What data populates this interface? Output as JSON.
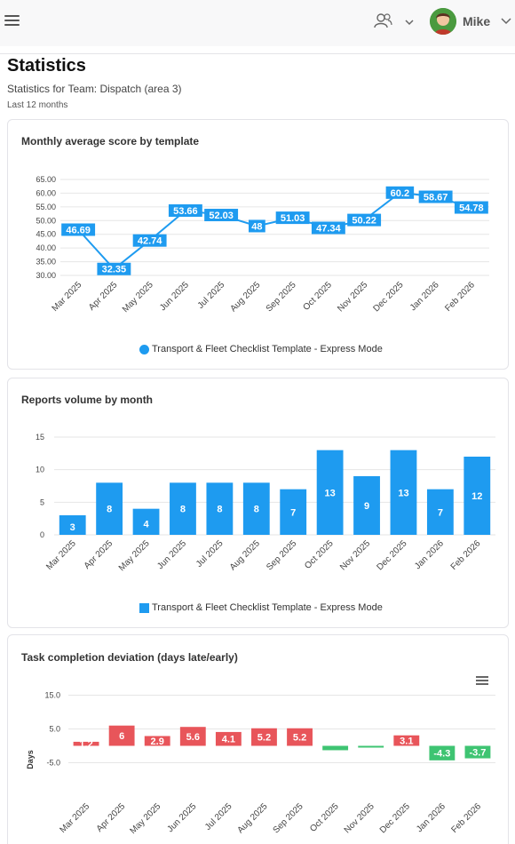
{
  "header": {
    "menu_icon": "hamburger-icon",
    "team_icon": "users-icon",
    "user_name": "Mike"
  },
  "page": {
    "title": "Statistics",
    "subtitle": "Statistics for Team: Dispatch (area 3)",
    "range": "Last 12 months"
  },
  "colors": {
    "accent": "#1e9bf0",
    "late": "#e8555a",
    "early": "#3ec472"
  },
  "chart_data": [
    {
      "type": "line",
      "title": "Monthly average score by template",
      "categories": [
        "Mar 2025",
        "Apr 2025",
        "May 2025",
        "Jun 2025",
        "Jul 2025",
        "Aug 2025",
        "Sep 2025",
        "Oct 2025",
        "Nov 2025",
        "Dec 2025",
        "Jan 2026",
        "Feb 2026"
      ],
      "series": [
        {
          "name": "Transport & Fleet Checklist Template - Express Mode",
          "values": [
            46.69,
            32.35,
            42.74,
            53.66,
            52.03,
            48,
            51.03,
            47.34,
            50.22,
            60.2,
            58.67,
            54.78
          ]
        }
      ],
      "yticks": [
        "30.00",
        "35.00",
        "40.00",
        "45.00",
        "50.00",
        "55.00",
        "60.00",
        "65.00"
      ],
      "ylim": [
        30,
        65
      ],
      "legend_position": "bottom",
      "grid": true
    },
    {
      "type": "bar",
      "title": "Reports volume by month",
      "categories": [
        "Mar 2025",
        "Apr 2025",
        "May 2025",
        "Jun 2025",
        "Jul 2025",
        "Aug 2025",
        "Sep 2025",
        "Oct 2025",
        "Nov 2025",
        "Dec 2025",
        "Jan 2026",
        "Feb 2026"
      ],
      "series": [
        {
          "name": "Transport & Fleet Checklist Template - Express Mode",
          "values": [
            3,
            8,
            4,
            8,
            8,
            8,
            7,
            13,
            9,
            13,
            7,
            12
          ]
        }
      ],
      "yticks": [
        "0",
        "5",
        "10",
        "15"
      ],
      "ylim": [
        0,
        15
      ],
      "legend_position": "bottom",
      "grid": true
    },
    {
      "type": "bar",
      "title": "Task completion deviation (days late/early)",
      "categories": [
        "Mar 2025",
        "Apr 2025",
        "May 2025",
        "Jun 2025",
        "Jul 2025",
        "Aug 2025",
        "Sep 2025",
        "Oct 2025",
        "Nov 2025",
        "Dec 2025",
        "Jan 2026",
        "Feb 2026"
      ],
      "values": [
        1.2,
        6,
        2.9,
        5.6,
        4.1,
        5.2,
        5.2,
        -1.3,
        -0.4,
        3.1,
        -4.3,
        -3.7
      ],
      "labels": [
        "1.2",
        "6",
        "2.9",
        "5.6",
        "4.1",
        "5.2",
        "5.2",
        "",
        "",
        "3.1",
        "-4.3",
        "-3.7"
      ],
      "yticks": [
        "-5.0",
        "5.0",
        "15.0"
      ],
      "ylim": [
        -12,
        17
      ],
      "ylabel": "Days",
      "menu_icon": "hamburger-menu-icon",
      "grid": true
    }
  ]
}
